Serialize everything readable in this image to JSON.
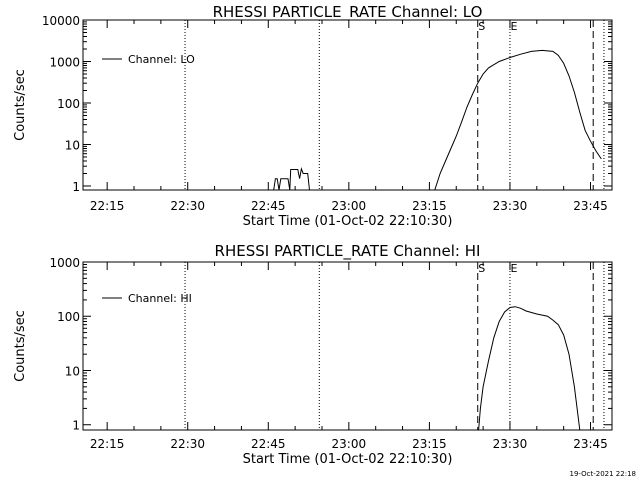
{
  "chart_data": [
    {
      "type": "line",
      "title": "RHESSI PARTICLE_RATE Channel: LO",
      "xlabel": "Start Time (01-Oct-02 22:10:30)",
      "ylabel": "Counts/sec",
      "yscale": "log",
      "xlim": [
        "22:10:30",
        "23:49:00"
      ],
      "ylim": [
        0.8,
        10000
      ],
      "xticks": [
        "22:15",
        "22:30",
        "22:45",
        "23:00",
        "23:15",
        "23:30",
        "23:45"
      ],
      "yticks": [
        "1",
        "10",
        "100",
        "1000",
        "10000"
      ],
      "grid": false,
      "legend_position": "top-left",
      "series": [
        {
          "name": "Channel: LO",
          "points": [
            [
              "22:46:00",
              0.8
            ],
            [
              "22:46:20",
              1.5
            ],
            [
              "22:46:40",
              1.5
            ],
            [
              "22:47:00",
              0.8
            ],
            [
              "22:47:20",
              1.5
            ],
            [
              "22:48:40",
              1.5
            ],
            [
              "22:49:00",
              0.8
            ],
            [
              "22:49:10",
              2.5
            ],
            [
              "22:50:30",
              2.5
            ],
            [
              "22:50:50",
              1.5
            ],
            [
              "22:51:10",
              2.6
            ],
            [
              "22:51:30",
              2.0
            ],
            [
              "22:52:20",
              2.0
            ],
            [
              "22:52:40",
              0.8
            ],
            [
              "23:16:00",
              0.8
            ],
            [
              "23:17:00",
              2.0
            ],
            [
              "23:18:00",
              4.0
            ],
            [
              "23:19:00",
              8.0
            ],
            [
              "23:20:00",
              16
            ],
            [
              "23:21:00",
              35
            ],
            [
              "23:22:00",
              80
            ],
            [
              "23:23:00",
              160
            ],
            [
              "23:24:00",
              300
            ],
            [
              "23:25:00",
              500
            ],
            [
              "23:26:00",
              700
            ],
            [
              "23:28:00",
              1000
            ],
            [
              "23:30:00",
              1250
            ],
            [
              "23:32:00",
              1500
            ],
            [
              "23:34:00",
              1750
            ],
            [
              "23:36:00",
              1850
            ],
            [
              "23:38:00",
              1750
            ],
            [
              "23:39:00",
              1400
            ],
            [
              "23:40:00",
              900
            ],
            [
              "23:41:00",
              450
            ],
            [
              "23:42:00",
              180
            ],
            [
              "23:43:00",
              60
            ],
            [
              "23:44:00",
              22
            ],
            [
              "23:45:00",
              12
            ],
            [
              "23:46:00",
              7
            ],
            [
              "23:47:00",
              4.5
            ]
          ]
        }
      ]
    },
    {
      "type": "line",
      "title": "RHESSI PARTICLE_RATE Channel: HI",
      "xlabel": "Start Time (01-Oct-02 22:10:30)",
      "ylabel": "Counts/sec",
      "yscale": "log",
      "xlim": [
        "22:10:30",
        "23:49:00"
      ],
      "ylim": [
        0.8,
        1000
      ],
      "xticks": [
        "22:15",
        "22:30",
        "22:45",
        "23:00",
        "23:15",
        "23:30",
        "23:45"
      ],
      "yticks": [
        "1",
        "10",
        "100",
        "1000"
      ],
      "grid": false,
      "legend_position": "top-left",
      "series": [
        {
          "name": "Channel: HI",
          "points": [
            [
              "23:24:10",
              0.8
            ],
            [
              "23:24:30",
              2.0
            ],
            [
              "23:25:00",
              5.0
            ],
            [
              "23:26:00",
              15
            ],
            [
              "23:27:00",
              40
            ],
            [
              "23:28:00",
              80
            ],
            [
              "23:29:00",
              120
            ],
            [
              "23:30:00",
              145
            ],
            [
              "23:31:00",
              150
            ],
            [
              "23:32:00",
              140
            ],
            [
              "23:33:00",
              125
            ],
            [
              "23:35:00",
              110
            ],
            [
              "23:37:00",
              100
            ],
            [
              "23:38:00",
              85
            ],
            [
              "23:39:00",
              70
            ],
            [
              "23:40:00",
              45
            ],
            [
              "23:41:00",
              20
            ],
            [
              "23:42:00",
              5
            ],
            [
              "23:42:30",
              2
            ],
            [
              "23:43:00",
              0.8
            ]
          ]
        }
      ]
    }
  ],
  "markers": {
    "dotted_times": [
      "22:29:30",
      "22:54:30",
      "23:30:00",
      "23:47:30"
    ],
    "dashed_times": [
      "23:24:00",
      "23:45:30"
    ],
    "labels": [
      {
        "text": "S",
        "time": "23:24:00"
      },
      {
        "text": "E",
        "time": "23:30:00"
      }
    ]
  },
  "timestamp": "19-Oct-2021 22:18"
}
